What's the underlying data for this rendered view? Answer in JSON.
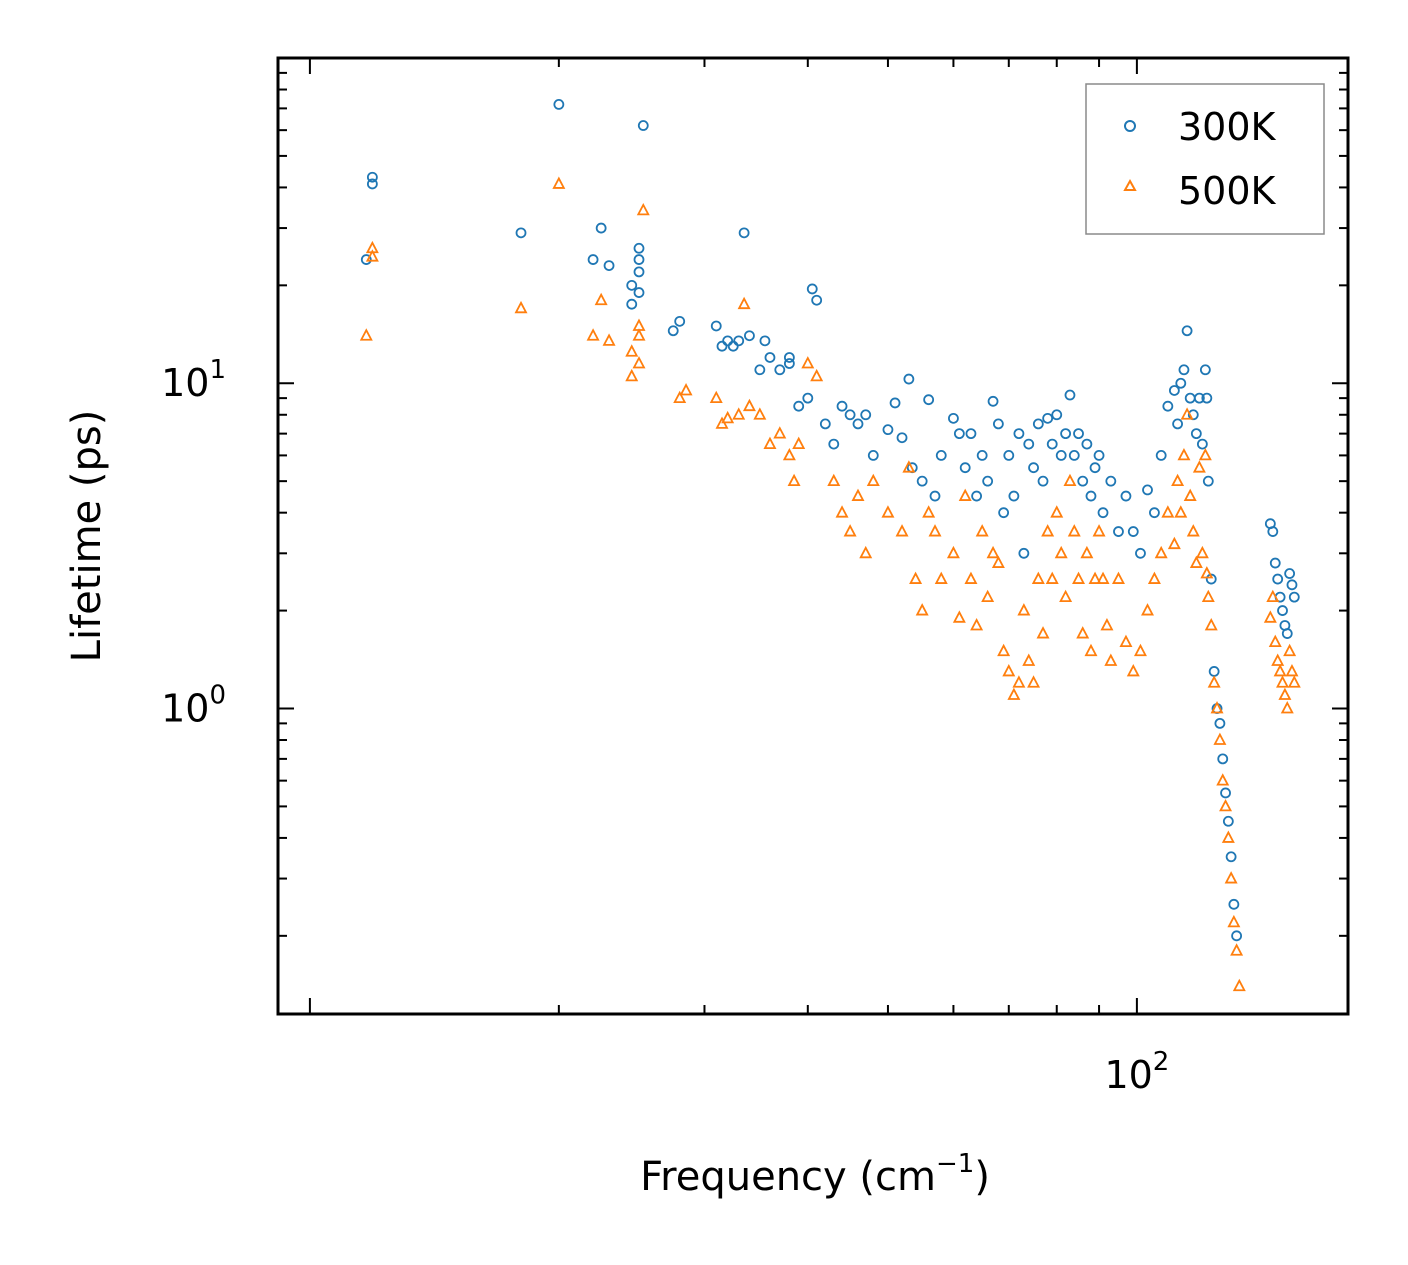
{
  "chart_data": {
    "type": "scatter",
    "xscale": "log",
    "yscale": "log",
    "xlabel": "Frequency (cm",
    "xlabel_sup": "−1",
    "xlabel_end": ")",
    "ylabel": "Lifetime (ps)",
    "xlim": [
      9.15,
      180
    ],
    "ylim": [
      0.115,
      100
    ],
    "x_tick_labels": [
      {
        "base": "10",
        "exp": "2",
        "value": 100
      }
    ],
    "y_tick_labels": [
      {
        "base": "10",
        "exp": "0",
        "value": 1
      },
      {
        "base": "10",
        "exp": "1",
        "value": 10
      }
    ],
    "legend": {
      "position": "top-right"
    },
    "series": [
      {
        "name": "300K",
        "marker": "circle",
        "color": "#1f77b4",
        "points": [
          [
            11.7,
            24
          ],
          [
            11.9,
            43
          ],
          [
            11.9,
            41
          ],
          [
            18,
            29
          ],
          [
            20,
            72
          ],
          [
            22,
            24
          ],
          [
            22.5,
            30
          ],
          [
            23,
            23
          ],
          [
            24.5,
            20
          ],
          [
            24.5,
            17.5
          ],
          [
            25,
            26
          ],
          [
            25,
            24
          ],
          [
            25,
            22
          ],
          [
            25,
            19
          ],
          [
            25.3,
            62
          ],
          [
            27.5,
            14.5
          ],
          [
            28,
            15.5
          ],
          [
            31,
            15
          ],
          [
            31.5,
            13
          ],
          [
            32,
            13.5
          ],
          [
            32.5,
            13
          ],
          [
            33,
            13.5
          ],
          [
            33.5,
            29
          ],
          [
            34,
            14
          ],
          [
            35,
            11
          ],
          [
            35.5,
            13.5
          ],
          [
            36,
            12
          ],
          [
            37,
            11
          ],
          [
            38,
            12
          ],
          [
            38,
            11.5
          ],
          [
            39,
            8.5
          ],
          [
            40,
            9
          ],
          [
            40.5,
            19.5
          ],
          [
            41,
            18
          ],
          [
            42,
            7.5
          ],
          [
            43,
            6.5
          ],
          [
            44,
            8.5
          ],
          [
            45,
            8
          ],
          [
            46,
            7.5
          ],
          [
            47,
            8
          ],
          [
            48,
            6
          ],
          [
            50,
            7.2
          ],
          [
            51,
            8.7
          ],
          [
            52,
            6.8
          ],
          [
            53,
            10.3
          ],
          [
            53.5,
            5.5
          ],
          [
            55,
            5
          ],
          [
            56,
            8.9
          ],
          [
            57,
            4.5
          ],
          [
            58,
            6
          ],
          [
            60,
            7.8
          ],
          [
            61,
            7
          ],
          [
            62,
            5.5
          ],
          [
            63,
            7
          ],
          [
            64,
            4.5
          ],
          [
            65,
            6
          ],
          [
            66,
            5
          ],
          [
            67,
            8.8
          ],
          [
            68,
            7.5
          ],
          [
            69,
            4
          ],
          [
            70,
            6
          ],
          [
            71,
            4.5
          ],
          [
            72,
            7
          ],
          [
            73,
            3
          ],
          [
            74,
            6.5
          ],
          [
            75,
            5.5
          ],
          [
            76,
            7.5
          ],
          [
            77,
            5
          ],
          [
            78,
            7.8
          ],
          [
            79,
            6.5
          ],
          [
            80,
            8
          ],
          [
            81,
            6
          ],
          [
            82,
            7
          ],
          [
            83,
            9.2
          ],
          [
            84,
            6
          ],
          [
            85,
            7
          ],
          [
            86,
            5
          ],
          [
            87,
            6.5
          ],
          [
            88,
            4.5
          ],
          [
            89,
            5.5
          ],
          [
            90,
            6
          ],
          [
            91,
            4
          ],
          [
            93,
            5
          ],
          [
            95,
            3.5
          ],
          [
            97,
            4.5
          ],
          [
            99,
            3.5
          ],
          [
            101,
            3
          ],
          [
            103,
            4.7
          ],
          [
            105,
            4
          ],
          [
            107,
            6
          ],
          [
            109,
            8.5
          ],
          [
            111,
            9.5
          ],
          [
            112,
            7.5
          ],
          [
            113,
            10
          ],
          [
            114,
            11
          ],
          [
            115,
            14.5
          ],
          [
            116,
            9
          ],
          [
            117,
            8
          ],
          [
            118,
            7
          ],
          [
            119,
            9
          ],
          [
            120,
            6.5
          ],
          [
            121,
            11
          ],
          [
            121.5,
            9
          ],
          [
            122,
            5
          ],
          [
            123,
            2.5
          ],
          [
            124,
            1.3
          ],
          [
            125,
            1
          ],
          [
            126,
            0.9
          ],
          [
            127,
            0.7
          ],
          [
            128,
            0.55
          ],
          [
            129,
            0.45
          ],
          [
            130,
            0.35
          ],
          [
            131,
            0.25
          ],
          [
            132,
            0.2
          ],
          [
            145,
            3.7
          ],
          [
            146,
            3.5
          ],
          [
            147,
            2.8
          ],
          [
            148,
            2.5
          ],
          [
            149,
            2.2
          ],
          [
            150,
            2
          ],
          [
            151,
            1.8
          ],
          [
            152,
            1.7
          ],
          [
            153,
            2.6
          ],
          [
            154,
            2.4
          ],
          [
            155,
            2.2
          ]
        ]
      },
      {
        "name": "500K",
        "marker": "triangle",
        "color": "#ff7f0e",
        "points": [
          [
            11.7,
            14
          ],
          [
            11.9,
            26
          ],
          [
            11.9,
            24.5
          ],
          [
            18,
            17
          ],
          [
            20,
            41
          ],
          [
            22,
            14
          ],
          [
            22.5,
            18
          ],
          [
            23,
            13.5
          ],
          [
            24.5,
            10.5
          ],
          [
            24.5,
            12.5
          ],
          [
            25,
            15
          ],
          [
            25,
            14
          ],
          [
            25,
            11.5
          ],
          [
            25.3,
            34
          ],
          [
            28,
            9
          ],
          [
            28.5,
            9.5
          ],
          [
            31,
            9
          ],
          [
            31.5,
            7.5
          ],
          [
            32,
            7.8
          ],
          [
            33,
            8
          ],
          [
            33.5,
            17.5
          ],
          [
            34,
            8.5
          ],
          [
            35,
            8
          ],
          [
            36,
            6.5
          ],
          [
            37,
            7
          ],
          [
            38,
            6
          ],
          [
            38.5,
            5
          ],
          [
            39,
            6.5
          ],
          [
            40,
            11.5
          ],
          [
            41,
            10.5
          ],
          [
            43,
            5
          ],
          [
            44,
            4
          ],
          [
            45,
            3.5
          ],
          [
            46,
            4.5
          ],
          [
            47,
            3
          ],
          [
            48,
            5
          ],
          [
            50,
            4
          ],
          [
            52,
            3.5
          ],
          [
            53,
            5.5
          ],
          [
            54,
            2.5
          ],
          [
            55,
            2
          ],
          [
            56,
            4
          ],
          [
            57,
            3.5
          ],
          [
            58,
            2.5
          ],
          [
            60,
            3
          ],
          [
            61,
            1.9
          ],
          [
            62,
            4.5
          ],
          [
            63,
            2.5
          ],
          [
            64,
            1.8
          ],
          [
            65,
            3.5
          ],
          [
            66,
            2.2
          ],
          [
            67,
            3
          ],
          [
            68,
            2.8
          ],
          [
            69,
            1.5
          ],
          [
            70,
            1.3
          ],
          [
            71,
            1.1
          ],
          [
            72,
            1.2
          ],
          [
            73,
            2
          ],
          [
            74,
            1.4
          ],
          [
            75,
            1.2
          ],
          [
            76,
            2.5
          ],
          [
            77,
            1.7
          ],
          [
            78,
            3.5
          ],
          [
            79,
            2.5
          ],
          [
            80,
            4
          ],
          [
            81,
            3
          ],
          [
            82,
            2.2
          ],
          [
            83,
            5
          ],
          [
            84,
            3.5
          ],
          [
            85,
            2.5
          ],
          [
            86,
            1.7
          ],
          [
            87,
            3
          ],
          [
            88,
            1.5
          ],
          [
            89,
            2.5
          ],
          [
            90,
            3.5
          ],
          [
            91,
            2.5
          ],
          [
            92,
            1.8
          ],
          [
            93,
            1.4
          ],
          [
            95,
            2.5
          ],
          [
            97,
            1.6
          ],
          [
            99,
            1.3
          ],
          [
            101,
            1.5
          ],
          [
            103,
            2
          ],
          [
            105,
            2.5
          ],
          [
            107,
            3
          ],
          [
            109,
            4
          ],
          [
            111,
            3.2
          ],
          [
            112,
            5
          ],
          [
            113,
            4
          ],
          [
            114,
            6
          ],
          [
            115,
            8
          ],
          [
            116,
            4.5
          ],
          [
            117,
            3.5
          ],
          [
            118,
            2.8
          ],
          [
            119,
            5.5
          ],
          [
            120,
            3
          ],
          [
            121,
            6
          ],
          [
            121.5,
            2.6
          ],
          [
            122,
            2.2
          ],
          [
            123,
            1.8
          ],
          [
            124,
            1.2
          ],
          [
            125,
            1
          ],
          [
            126,
            0.8
          ],
          [
            127,
            0.6
          ],
          [
            128,
            0.5
          ],
          [
            129,
            0.4
          ],
          [
            130,
            0.3
          ],
          [
            131,
            0.22
          ],
          [
            132,
            0.18
          ],
          [
            133,
            0.14
          ],
          [
            145,
            1.9
          ],
          [
            146,
            2.2
          ],
          [
            147,
            1.6
          ],
          [
            148,
            1.4
          ],
          [
            149,
            1.3
          ],
          [
            150,
            1.2
          ],
          [
            151,
            1.1
          ],
          [
            152,
            1
          ],
          [
            153,
            1.5
          ],
          [
            154,
            1.3
          ],
          [
            155,
            1.2
          ]
        ]
      }
    ]
  }
}
